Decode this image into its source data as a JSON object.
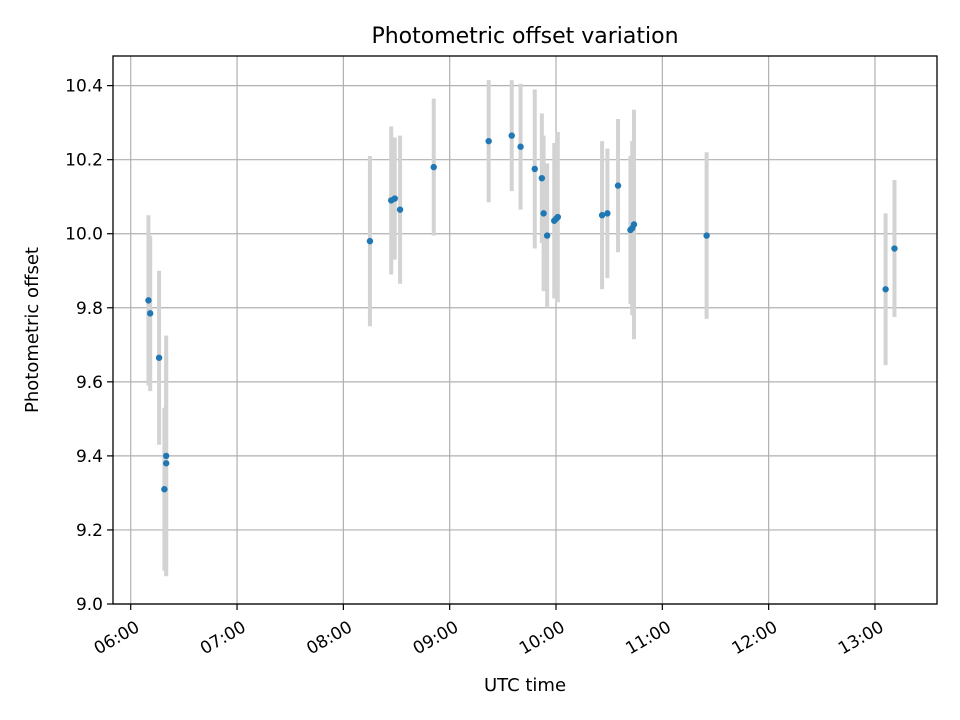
{
  "chart_data": {
    "type": "scatter",
    "title": "Photometric offset variation",
    "xlabel": "UTC time",
    "ylabel": "Photometric offset",
    "x_axis_type": "time",
    "xlim": [
      "05:50",
      "13:35"
    ],
    "ylim": [
      9.0,
      10.48
    ],
    "x_ticks": [
      "06:00",
      "07:00",
      "08:00",
      "09:00",
      "10:00",
      "11:00",
      "12:00",
      "13:00"
    ],
    "y_ticks": [
      9.0,
      9.2,
      9.4,
      9.6,
      9.8,
      10.0,
      10.2,
      10.4
    ],
    "y_tick_labels": [
      "9.0",
      "9.2",
      "9.4",
      "9.6",
      "9.8",
      "10.0",
      "10.2",
      "10.4"
    ],
    "grid": true,
    "legend": "none",
    "colors": {
      "marker": "#1f77b4",
      "errorbar": "#d3d3d3",
      "grid": "#b0b0b0"
    },
    "series": [
      {
        "points": [
          {
            "x": "06:10",
            "y": 9.82,
            "err": 0.23
          },
          {
            "x": "06:11",
            "y": 9.785,
            "err": 0.21
          },
          {
            "x": "06:16",
            "y": 9.665,
            "err": 0.235
          },
          {
            "x": "06:19",
            "y": 9.31,
            "err": 0.22
          },
          {
            "x": "06:20",
            "y": 9.38,
            "err": 0.3
          },
          {
            "x": "06:20",
            "y": 9.4,
            "err": 0.325
          },
          {
            "x": "08:15",
            "y": 9.98,
            "err": 0.23
          },
          {
            "x": "08:27",
            "y": 10.09,
            "err": 0.2
          },
          {
            "x": "08:29",
            "y": 10.095,
            "err": 0.165
          },
          {
            "x": "08:32",
            "y": 10.065,
            "err": 0.2
          },
          {
            "x": "08:51",
            "y": 10.18,
            "err": 0.185
          },
          {
            "x": "09:22",
            "y": 10.25,
            "err": 0.165
          },
          {
            "x": "09:35",
            "y": 10.265,
            "err": 0.15
          },
          {
            "x": "09:40",
            "y": 10.235,
            "err": 0.17
          },
          {
            "x": "09:48",
            "y": 10.175,
            "err": 0.215
          },
          {
            "x": "09:52",
            "y": 10.15,
            "err": 0.175
          },
          {
            "x": "09:53",
            "y": 10.055,
            "err": 0.21
          },
          {
            "x": "09:55",
            "y": 9.995,
            "err": 0.195
          },
          {
            "x": "09:59",
            "y": 10.035,
            "err": 0.21
          },
          {
            "x": "10:00",
            "y": 10.04,
            "err": 0.2
          },
          {
            "x": "10:01",
            "y": 10.045,
            "err": 0.23
          },
          {
            "x": "10:26",
            "y": 10.05,
            "err": 0.2
          },
          {
            "x": "10:29",
            "y": 10.055,
            "err": 0.175
          },
          {
            "x": "10:35",
            "y": 10.13,
            "err": 0.18
          },
          {
            "x": "10:42",
            "y": 10.01,
            "err": 0.2
          },
          {
            "x": "10:43",
            "y": 10.015,
            "err": 0.235
          },
          {
            "x": "10:44",
            "y": 10.025,
            "err": 0.31
          },
          {
            "x": "11:25",
            "y": 9.995,
            "err": 0.225
          },
          {
            "x": "13:06",
            "y": 9.85,
            "err": 0.205
          },
          {
            "x": "13:11",
            "y": 9.96,
            "err": 0.185
          }
        ]
      }
    ]
  }
}
